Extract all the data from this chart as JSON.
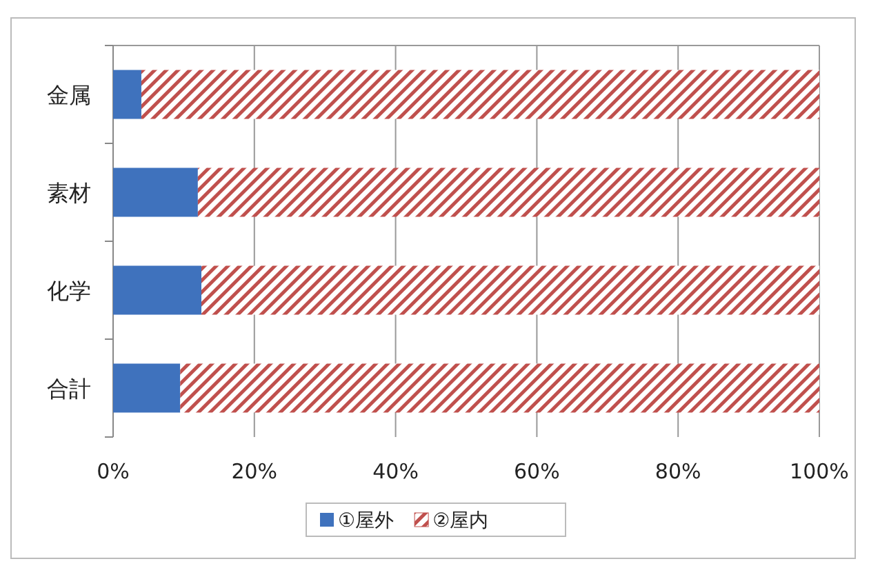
{
  "chart_data": {
    "type": "bar",
    "orientation": "horizontal",
    "stacked": true,
    "categories": [
      "金属",
      "素材",
      "化学",
      "合計"
    ],
    "series": [
      {
        "name": "①屋外",
        "color": "#3f72bd",
        "values": [
          4,
          12,
          12.5,
          9.5
        ]
      },
      {
        "name": "②屋内",
        "color": "#c0504d",
        "values": [
          96,
          88,
          87.5,
          90.5
        ]
      }
    ],
    "xlim": [
      0,
      100
    ],
    "xticks": [
      {
        "value": 0,
        "label": "0%"
      },
      {
        "value": 20,
        "label": "20%"
      },
      {
        "value": 40,
        "label": "40%"
      },
      {
        "value": 60,
        "label": "60%"
      },
      {
        "value": 80,
        "label": "80%"
      },
      {
        "value": 100,
        "label": "100%"
      }
    ],
    "grid": "x",
    "legend": "bottom"
  }
}
